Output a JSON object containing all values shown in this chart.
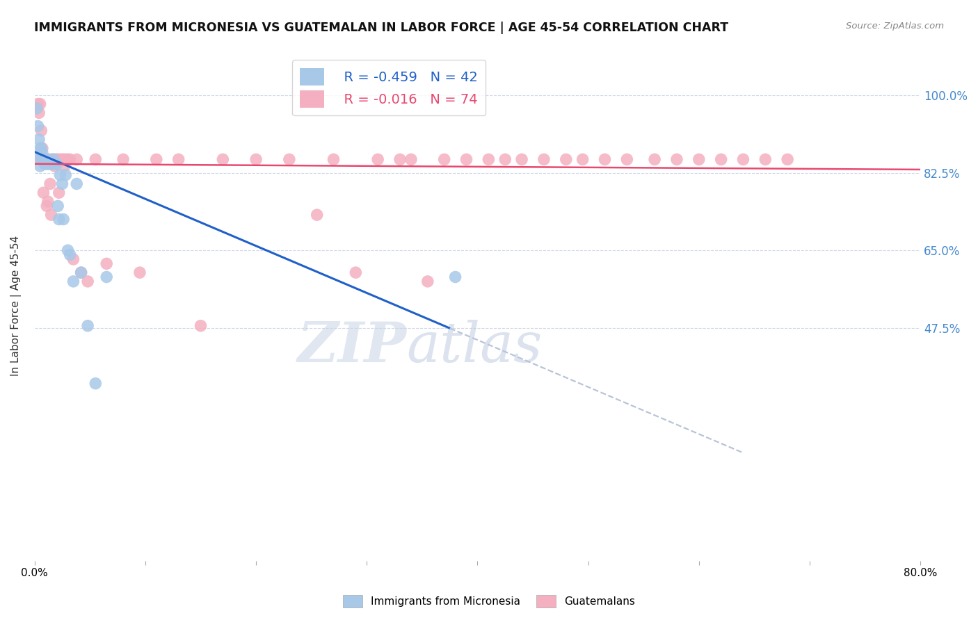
{
  "title": "IMMIGRANTS FROM MICRONESIA VS GUATEMALAN IN LABOR FORCE | AGE 45-54 CORRELATION CHART",
  "source": "Source: ZipAtlas.com",
  "ylabel": "In Labor Force | Age 45-54",
  "xlim": [
    0.0,
    0.8
  ],
  "ylim": [
    -0.05,
    1.1
  ],
  "ytick_vals": [
    0.475,
    0.65,
    0.825,
    1.0
  ],
  "ytick_labels": [
    "47.5%",
    "65.0%",
    "82.5%",
    "100.0%"
  ],
  "xtick_positions": [
    0.0,
    0.1,
    0.2,
    0.3,
    0.4,
    0.5,
    0.6,
    0.7,
    0.8
  ],
  "xtick_labels": [
    "0.0%",
    "",
    "",
    "",
    "",
    "",
    "",
    "",
    "80.0%"
  ],
  "r_micronesia": -0.459,
  "n_micronesia": 42,
  "r_guatemalan": -0.016,
  "n_guatemalan": 74,
  "color_micronesia": "#a8c8e8",
  "color_guatemalan": "#f4b0c0",
  "color_line_micronesia": "#2060c8",
  "color_line_guatemalan": "#e84870",
  "color_line_dashed": "#b8c4d8",
  "micronesia_x": [
    0.002,
    0.003,
    0.004,
    0.005,
    0.005,
    0.005,
    0.006,
    0.006,
    0.007,
    0.007,
    0.008,
    0.008,
    0.009,
    0.009,
    0.01,
    0.01,
    0.011,
    0.011,
    0.012,
    0.013,
    0.014,
    0.015,
    0.016,
    0.017,
    0.018,
    0.019,
    0.02,
    0.021,
    0.022,
    0.023,
    0.025,
    0.026,
    0.028,
    0.03,
    0.032,
    0.035,
    0.038,
    0.042,
    0.048,
    0.055,
    0.065,
    0.38
  ],
  "micronesia_y": [
    0.97,
    0.93,
    0.9,
    0.88,
    0.86,
    0.84,
    0.88,
    0.855,
    0.855,
    0.87,
    0.855,
    0.855,
    0.855,
    0.845,
    0.855,
    0.845,
    0.845,
    0.855,
    0.845,
    0.845,
    0.845,
    0.845,
    0.845,
    0.855,
    0.845,
    0.845,
    0.845,
    0.75,
    0.72,
    0.82,
    0.8,
    0.72,
    0.82,
    0.65,
    0.64,
    0.58,
    0.8,
    0.6,
    0.48,
    0.35,
    0.59,
    0.59
  ],
  "guatemalan_x": [
    0.003,
    0.004,
    0.005,
    0.005,
    0.006,
    0.006,
    0.007,
    0.007,
    0.008,
    0.008,
    0.009,
    0.009,
    0.01,
    0.01,
    0.011,
    0.011,
    0.012,
    0.012,
    0.013,
    0.014,
    0.015,
    0.015,
    0.016,
    0.017,
    0.018,
    0.019,
    0.02,
    0.021,
    0.022,
    0.023,
    0.025,
    0.026,
    0.027,
    0.028,
    0.03,
    0.032,
    0.035,
    0.038,
    0.042,
    0.048,
    0.055,
    0.065,
    0.08,
    0.095,
    0.11,
    0.13,
    0.15,
    0.17,
    0.2,
    0.23,
    0.255,
    0.27,
    0.29,
    0.31,
    0.33,
    0.34,
    0.355,
    0.37,
    0.39,
    0.41,
    0.425,
    0.44,
    0.46,
    0.48,
    0.495,
    0.515,
    0.535,
    0.56,
    0.58,
    0.6,
    0.62,
    0.64,
    0.66,
    0.68
  ],
  "guatemalan_y": [
    0.98,
    0.96,
    0.98,
    0.855,
    0.92,
    0.855,
    0.88,
    0.855,
    0.78,
    0.855,
    0.855,
    0.855,
    0.855,
    0.855,
    0.855,
    0.75,
    0.76,
    0.855,
    0.855,
    0.8,
    0.855,
    0.73,
    0.855,
    0.855,
    0.84,
    0.855,
    0.855,
    0.855,
    0.78,
    0.855,
    0.855,
    0.855,
    0.84,
    0.855,
    0.855,
    0.855,
    0.63,
    0.855,
    0.6,
    0.58,
    0.855,
    0.62,
    0.855,
    0.6,
    0.855,
    0.855,
    0.48,
    0.855,
    0.855,
    0.855,
    0.73,
    0.855,
    0.6,
    0.855,
    0.855,
    0.855,
    0.58,
    0.855,
    0.855,
    0.855,
    0.855,
    0.855,
    0.855,
    0.855,
    0.855,
    0.855,
    0.855,
    0.855,
    0.855,
    0.855,
    0.855,
    0.855,
    0.855,
    0.855
  ],
  "background_color": "#ffffff",
  "grid_color": "#d0d8e8",
  "watermark_zip": "ZIP",
  "watermark_atlas": "atlas",
  "watermark_color_zip": "#c8d4e4",
  "watermark_color_atlas": "#c0cce0"
}
